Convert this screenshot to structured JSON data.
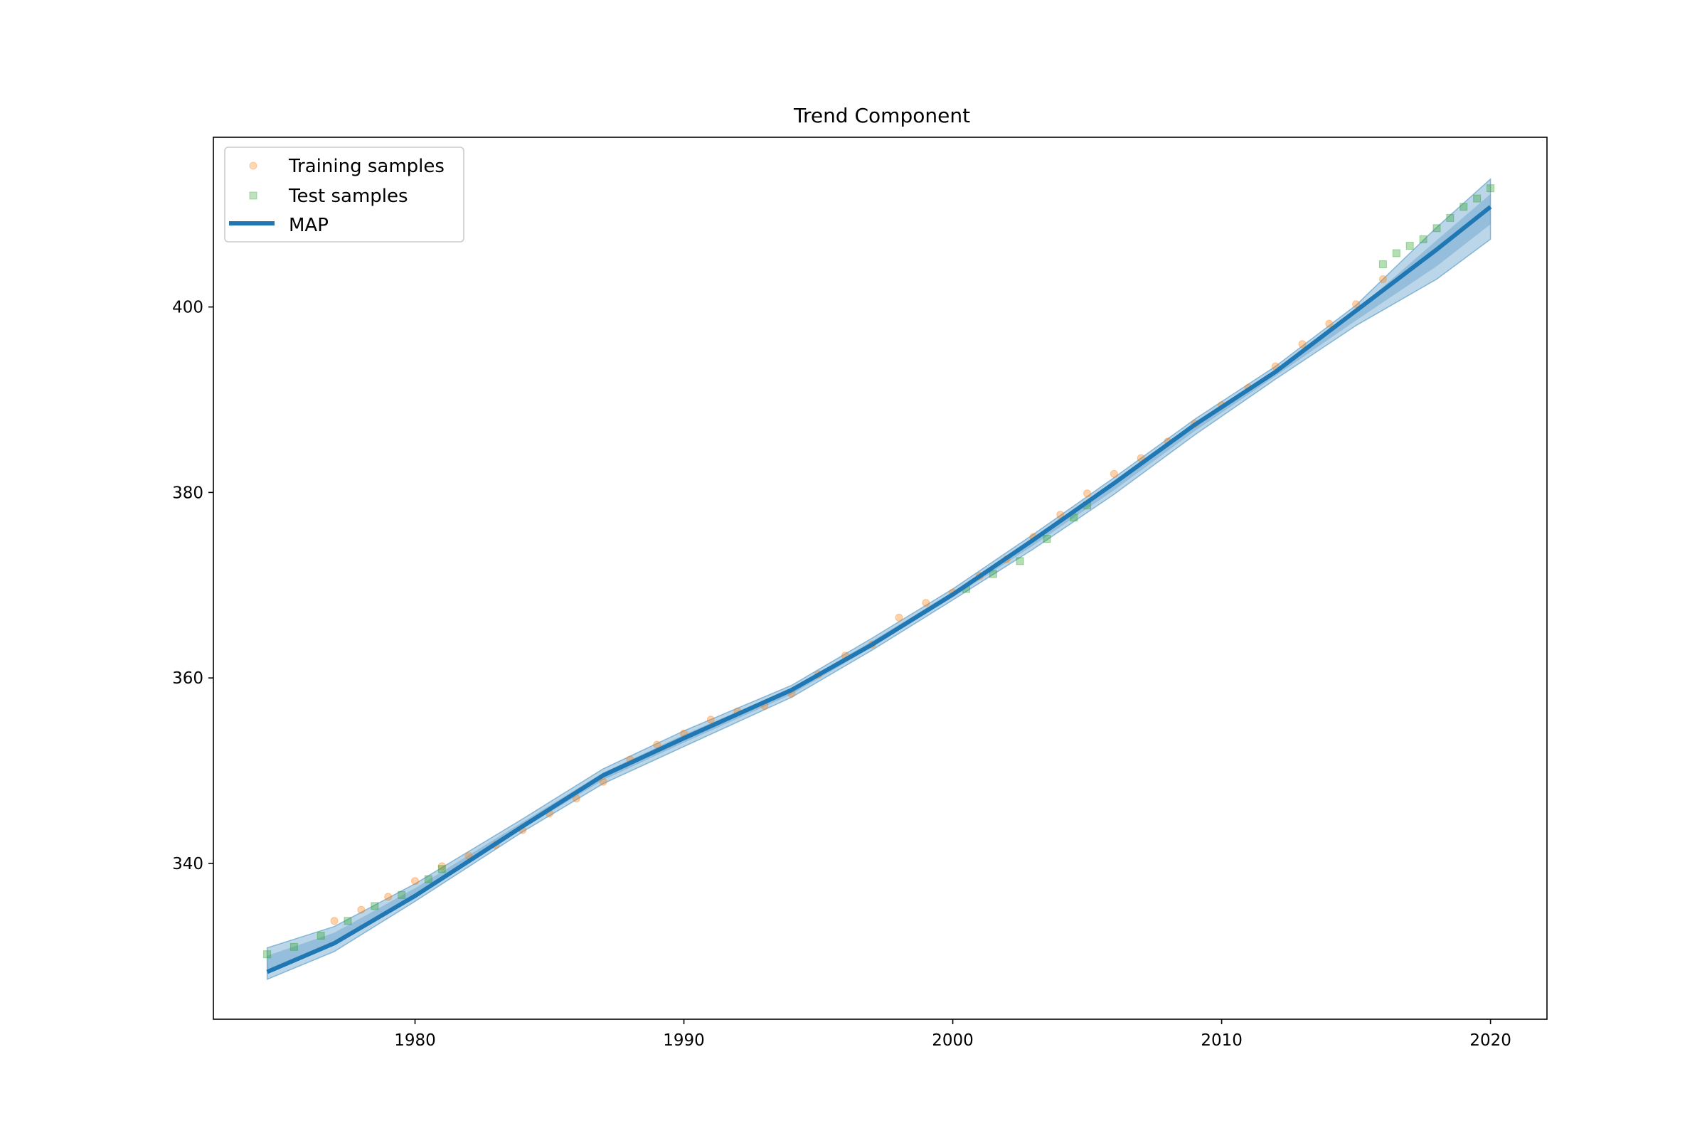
{
  "chart_data": {
    "type": "line",
    "title": "Trend Component",
    "xlabel": "",
    "ylabel": "",
    "xlim": [
      1972.5,
      2022.1
    ],
    "ylim": [
      323.2,
      418.3
    ],
    "x_ticks": [
      1980,
      1990,
      2000,
      2010,
      2020
    ],
    "y_ticks": [
      340,
      360,
      380,
      400
    ],
    "grid": false,
    "legend": {
      "placement": "top-left",
      "entries": [
        "Training samples",
        "Test samples",
        "MAP"
      ]
    },
    "colors": {
      "training": "#ff7f0e",
      "test": "#2ca02c",
      "map": "#1f77b4",
      "band": "#1f77b4"
    },
    "series": [
      {
        "name": "MAP",
        "x": [
          1974.5,
          1977,
          1980,
          1984,
          1987,
          1990,
          1994,
          1997,
          2000,
          2003,
          2006,
          2009,
          2012,
          2015,
          2018,
          2020
        ],
        "y": [
          328.3,
          331.4,
          336.5,
          344.0,
          349.5,
          353.5,
          358.7,
          363.6,
          369.0,
          374.9,
          381.0,
          387.3,
          393.0,
          399.6,
          406.2,
          410.8
        ]
      },
      {
        "name": "Training samples",
        "x": [
          1977,
          1978,
          1979,
          1980,
          1981,
          1982,
          1983,
          1984,
          1985,
          1986,
          1987,
          1988,
          1989,
          1990,
          1991,
          1992,
          1993,
          1994,
          1995,
          1996,
          1997,
          1998,
          1999,
          2000,
          2001,
          2002,
          2003,
          2004,
          2005,
          2006,
          2007,
          2008,
          2009,
          2010,
          2011,
          2012,
          2013,
          2014,
          2015,
          2016
        ],
        "y": [
          333.8,
          335.0,
          336.4,
          338.1,
          339.7,
          340.8,
          342.0,
          343.6,
          345.4,
          347.0,
          348.8,
          351.2,
          352.8,
          354.0,
          355.5,
          356.4,
          357.0,
          358.3,
          360.4,
          362.4,
          363.6,
          366.5,
          368.1,
          369.2,
          371.0,
          372.8,
          375.2,
          377.6,
          379.9,
          382.0,
          383.7,
          385.5,
          387.4,
          389.4,
          391.3,
          393.6,
          396.0,
          398.2,
          400.3,
          403.0
        ]
      },
      {
        "name": "Test samples",
        "x": [
          1974.5,
          1975.5,
          1976.5,
          1977.5,
          1978.5,
          1979.5,
          1980.5,
          1981,
          2000.5,
          2001.5,
          2002.5,
          2003.5,
          2004.5,
          2005,
          2016,
          2016.5,
          2017,
          2017.5,
          2018,
          2018.5,
          2019,
          2019.5,
          2020
        ],
        "y": [
          330.2,
          331.0,
          332.2,
          333.8,
          335.4,
          336.6,
          338.3,
          339.4,
          369.6,
          371.2,
          372.6,
          375.0,
          377.3,
          378.6,
          404.6,
          405.8,
          406.6,
          407.3,
          408.5,
          409.6,
          410.8,
          411.7,
          412.8
        ]
      }
    ],
    "uncertainty_band": {
      "x": [
        1974.5,
        1977,
        1980,
        1984,
        1987,
        1990,
        1994,
        1997,
        2000,
        2003,
        2006,
        2009,
        2012,
        2015,
        2018,
        2020
      ],
      "lower": [
        327.5,
        330.5,
        335.9,
        343.4,
        348.6,
        352.6,
        357.9,
        363.0,
        368.4,
        373.9,
        379.8,
        386.2,
        392.2,
        398.0,
        403.0,
        407.3
      ],
      "upper": [
        330.9,
        333.2,
        337.8,
        344.8,
        350.2,
        354.3,
        359.2,
        364.3,
        369.6,
        375.5,
        381.6,
        387.9,
        393.6,
        400.2,
        408.6,
        413.8
      ]
    }
  }
}
